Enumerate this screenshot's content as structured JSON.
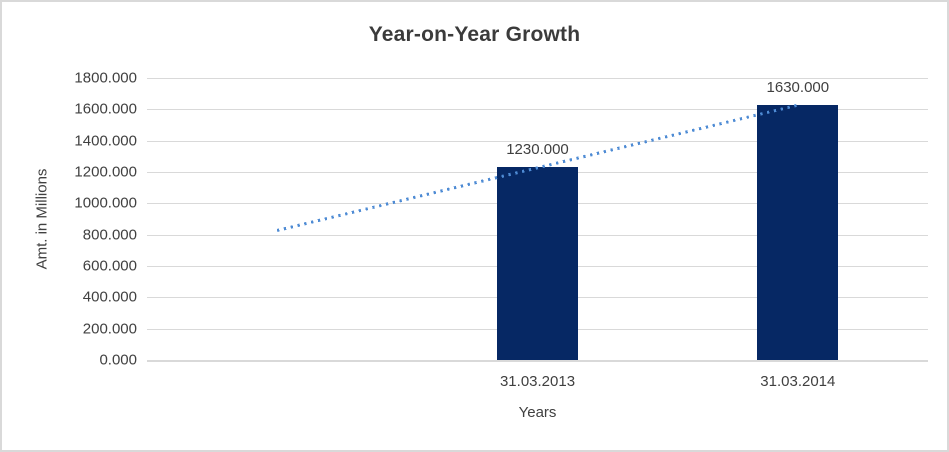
{
  "chart_data": {
    "type": "bar",
    "title": "Year-on-Year Growth",
    "xlabel": "Years",
    "ylabel": "Amt. in Millions",
    "categories": [
      "",
      "31.03.2013",
      "31.03.2014"
    ],
    "values": [
      null,
      1230,
      1630
    ],
    "data_labels": [
      "",
      "1230.000",
      "1630.000"
    ],
    "ylim": [
      0,
      1800
    ],
    "ytick_values": [
      1800,
      1600,
      1400,
      1200,
      1000,
      800,
      600,
      400,
      200,
      0
    ],
    "ytick_labels": [
      "1800.000",
      "1600.000",
      "1400.000",
      "1200.000",
      "1000.000",
      "800.000",
      "600.000",
      "400.000",
      "200.000",
      "0.000"
    ],
    "grid": true,
    "legend": "none",
    "bar_color": "#062864",
    "gridline_color": "#D9D9D9",
    "text_color": "#404040",
    "trendline": {
      "type": "linear",
      "style": "dotted",
      "color": "#4E8BD4",
      "points": [
        {
          "category_index": 0,
          "value": 830
        },
        {
          "category_index": 2,
          "value": 1630
        }
      ]
    }
  }
}
